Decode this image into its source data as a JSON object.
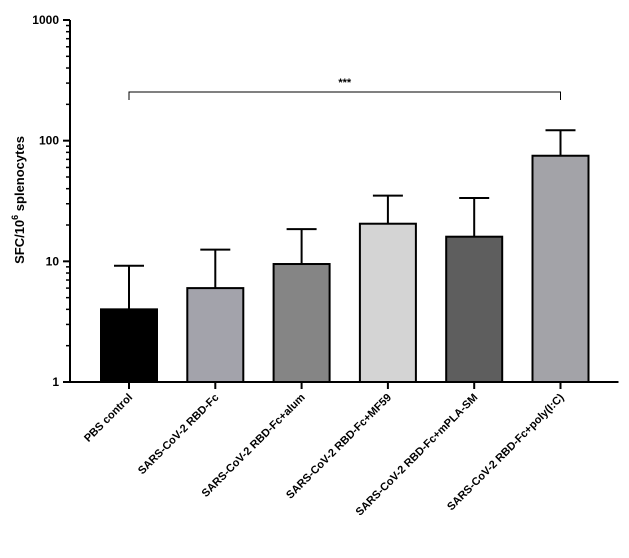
{
  "chart_data": {
    "type": "bar",
    "categories": [
      "PBS control",
      "SARS-CoV-2 RBD-Fc",
      "SARS-CoV-2 RBD-Fc+alum",
      "SARS-CoV-2 RBD-Fc+MF59",
      "SARS-CoV-2 RBD-Fc+mPLA-SM",
      "SARS-CoV-2 RBD-Fc+poly(I:C)"
    ],
    "values": [
      4,
      6,
      9.5,
      20.5,
      16,
      75
    ],
    "error_upper": [
      9.2,
      12.5,
      18.5,
      35,
      33.5,
      122
    ],
    "bar_colors": [
      "#000000",
      "#a3a3ab",
      "#858585",
      "#d4d4d4",
      "#5e5e5e",
      "#a3a3a8"
    ],
    "ylabel": "SFC/10",
    "ylabel_sup": "6",
    "ylabel_suffix": " splenocytes",
    "yscale": "log",
    "ylim": [
      1,
      1000
    ],
    "yticks": [
      1,
      10,
      100,
      1000
    ],
    "ytick_labels": [
      "1",
      "10",
      "100",
      "1000"
    ],
    "grid": false,
    "significance": {
      "from": "PBS control",
      "to": "SARS-CoV-2 RBD-Fc+poly(I:C)",
      "label": "***"
    }
  }
}
